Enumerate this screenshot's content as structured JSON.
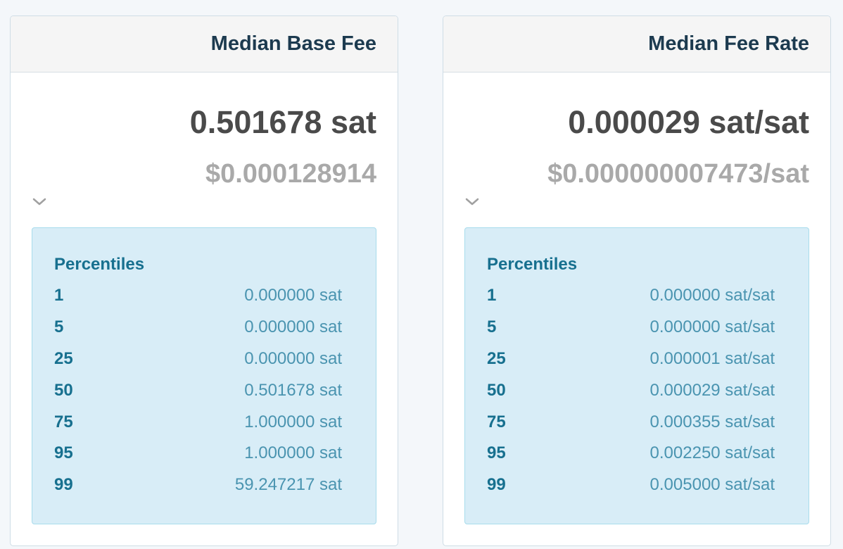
{
  "cards": [
    {
      "title": "Median Base Fee",
      "value": "0.501678 sat",
      "usd": "$0.000128914",
      "percentiles_heading": "Percentiles",
      "rows": [
        {
          "p": "1",
          "v": "0.000000 sat"
        },
        {
          "p": "5",
          "v": "0.000000 sat"
        },
        {
          "p": "25",
          "v": "0.000000 sat"
        },
        {
          "p": "50",
          "v": "0.501678 sat"
        },
        {
          "p": "75",
          "v": "1.000000 sat"
        },
        {
          "p": "95",
          "v": "1.000000 sat"
        },
        {
          "p": "99",
          "v": "59.247217 sat"
        }
      ]
    },
    {
      "title": "Median Fee Rate",
      "value": "0.000029 sat/sat",
      "usd": "$0.000000007473/sat",
      "percentiles_heading": "Percentiles",
      "rows": [
        {
          "p": "1",
          "v": "0.000000 sat/sat"
        },
        {
          "p": "5",
          "v": "0.000000 sat/sat"
        },
        {
          "p": "25",
          "v": "0.000001 sat/sat"
        },
        {
          "p": "50",
          "v": "0.000029 sat/sat"
        },
        {
          "p": "75",
          "v": "0.000355 sat/sat"
        },
        {
          "p": "95",
          "v": "0.002250 sat/sat"
        },
        {
          "p": "99",
          "v": "0.005000 sat/sat"
        }
      ]
    }
  ],
  "icons": {
    "toggle": "chevron-down-icon"
  },
  "colors": {
    "title": "#1c3a4f",
    "value": "#4a4a4a",
    "usd": "#a9a9a9",
    "panel_bg": "#d8edf7",
    "panel_border": "#a8dcec",
    "pct_key": "#17708f",
    "pct_value": "#4a94b0"
  }
}
